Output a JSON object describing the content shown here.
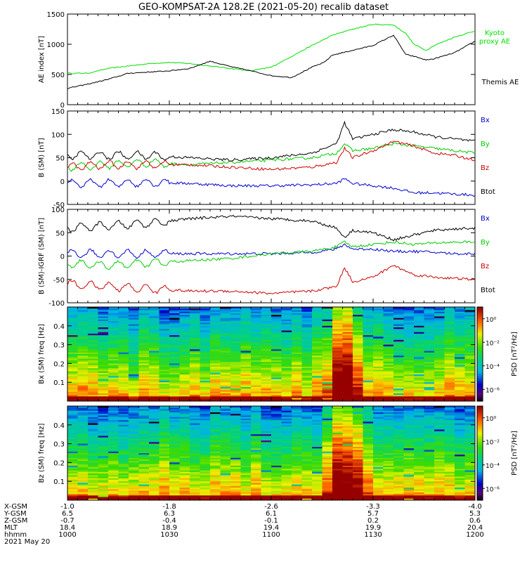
{
  "title": "GEO-KOMPSAT-2A 128.2E (2021-05-20) recalib dataset",
  "chart_data": [
    {
      "type": "line",
      "panel": "ae_index",
      "ylabel": "AE index [nT]",
      "ylim": [
        0,
        1500
      ],
      "yticks": [
        0,
        500,
        1000,
        1500
      ],
      "x": [
        0,
        0.05,
        0.1,
        0.15,
        0.2,
        0.25,
        0.3,
        0.35,
        0.4,
        0.45,
        0.5,
        0.55,
        0.6,
        0.63,
        0.65,
        0.7,
        0.75,
        0.8,
        0.83,
        0.85,
        0.88,
        0.9,
        0.95,
        1.0
      ],
      "series": [
        {
          "name": "Kyoto proxy AE",
          "color": "#00e000",
          "values": [
            520,
            520,
            600,
            640,
            680,
            700,
            680,
            640,
            600,
            560,
            620,
            800,
            980,
            1080,
            1150,
            1250,
            1330,
            1320,
            1180,
            1000,
            900,
            980,
            1120,
            1220
          ]
        },
        {
          "name": "Themis AE",
          "color": "#000000",
          "values": [
            270,
            340,
            420,
            520,
            540,
            560,
            600,
            720,
            630,
            560,
            480,
            450,
            620,
            700,
            820,
            900,
            980,
            1150,
            830,
            800,
            740,
            760,
            860,
            1050
          ]
        }
      ]
    },
    {
      "type": "line",
      "panel": "b_sm",
      "ylabel": "B (SM) [nT]",
      "ylim": [
        -50,
        150
      ],
      "yticks": [
        -50,
        0,
        50,
        100,
        150
      ],
      "x": [
        0,
        0.1,
        0.2,
        0.3,
        0.4,
        0.5,
        0.6,
        0.66,
        0.68,
        0.7,
        0.75,
        0.8,
        0.85,
        0.9,
        0.95,
        1.0
      ],
      "series": [
        {
          "name": "Bx",
          "color": "#0000cc",
          "values": [
            -5,
            -5,
            -3,
            -5,
            -10,
            -10,
            -8,
            -5,
            5,
            -5,
            -10,
            -15,
            -25,
            -25,
            -28,
            -30
          ]
        },
        {
          "name": "By",
          "color": "#00cc00",
          "values": [
            30,
            35,
            40,
            35,
            40,
            45,
            50,
            60,
            80,
            65,
            70,
            80,
            75,
            70,
            65,
            60
          ]
        },
        {
          "name": "Bz",
          "color": "#cc0000",
          "values": [
            30,
            35,
            35,
            35,
            30,
            25,
            30,
            40,
            70,
            50,
            65,
            85,
            75,
            60,
            55,
            45
          ]
        },
        {
          "name": "Btot",
          "color": "#000000",
          "values": [
            55,
            55,
            55,
            50,
            45,
            50,
            60,
            80,
            125,
            90,
            100,
            110,
            105,
            95,
            90,
            85
          ]
        }
      ]
    },
    {
      "type": "line",
      "panel": "b_minus_igrf",
      "ylabel": "B (SM)-IGRF (SM) [nT]",
      "ylim": [
        -100,
        100
      ],
      "yticks": [
        -100,
        -50,
        0,
        50,
        100
      ],
      "x": [
        0,
        0.1,
        0.2,
        0.3,
        0.4,
        0.5,
        0.6,
        0.66,
        0.68,
        0.7,
        0.75,
        0.8,
        0.85,
        0.9,
        0.95,
        1.0
      ],
      "series": [
        {
          "name": "Bx",
          "color": "#0000cc",
          "values": [
            5,
            5,
            5,
            5,
            5,
            5,
            8,
            15,
            25,
            15,
            15,
            10,
            10,
            8,
            5,
            5
          ]
        },
        {
          "name": "By",
          "color": "#00cc00",
          "values": [
            -15,
            -20,
            -15,
            -10,
            -5,
            5,
            10,
            20,
            30,
            20,
            25,
            30,
            25,
            28,
            30,
            30
          ]
        },
        {
          "name": "Bz",
          "color": "#cc0000",
          "values": [
            -60,
            -65,
            -70,
            -75,
            -75,
            -80,
            -75,
            -65,
            -25,
            -55,
            -45,
            -20,
            -40,
            -45,
            -48,
            -50
          ]
        },
        {
          "name": "Btot",
          "color": "#000000",
          "values": [
            60,
            65,
            70,
            80,
            85,
            80,
            75,
            60,
            40,
            55,
            50,
            35,
            45,
            55,
            58,
            60
          ]
        }
      ]
    },
    {
      "type": "heatmap",
      "panel": "bx_spectrogram",
      "ylabel": "Bx (SM) freq [Hz]",
      "ylim": [
        0,
        0.5
      ],
      "yticks": [
        0.1,
        0.2,
        0.3,
        0.4
      ],
      "colorbar": {
        "label": "PSD [nT²/Hz]",
        "ticks": [
          "10⁰",
          "10⁻²",
          "10⁻⁴",
          "10⁻⁶"
        ],
        "log_range": [
          -7,
          1
        ]
      }
    },
    {
      "type": "heatmap",
      "panel": "bz_spectrogram",
      "ylabel": "Bz (SM) freq [Hz]",
      "ylim": [
        0,
        0.5
      ],
      "yticks": [
        0.1,
        0.2,
        0.3,
        0.4
      ],
      "colorbar": {
        "label": "PSD [nT²/Hz]",
        "ticks": [
          "10⁰",
          "10⁻²",
          "10⁻⁴",
          "10⁻⁶"
        ],
        "log_range": [
          -7,
          1
        ]
      }
    }
  ],
  "footer": {
    "labels": [
      "X-GSM",
      "Y-GSM",
      "Z-GSM",
      "MLT",
      "hhmm"
    ],
    "date": "2021 May 20",
    "columns": [
      [
        "-1.0",
        "6.5",
        "-0.7",
        "18.4",
        "1000"
      ],
      [
        "-1.8",
        "6.3",
        "-0.4",
        "18.9",
        "1030"
      ],
      [
        "-2.6",
        "6.1",
        "-0.1",
        "19.4",
        "1100"
      ],
      [
        "-3.3",
        "5.7",
        "0.2",
        "19.9",
        "1130"
      ],
      [
        "-4.0",
        "5.3",
        "0.6",
        "20.4",
        "1200"
      ]
    ]
  }
}
